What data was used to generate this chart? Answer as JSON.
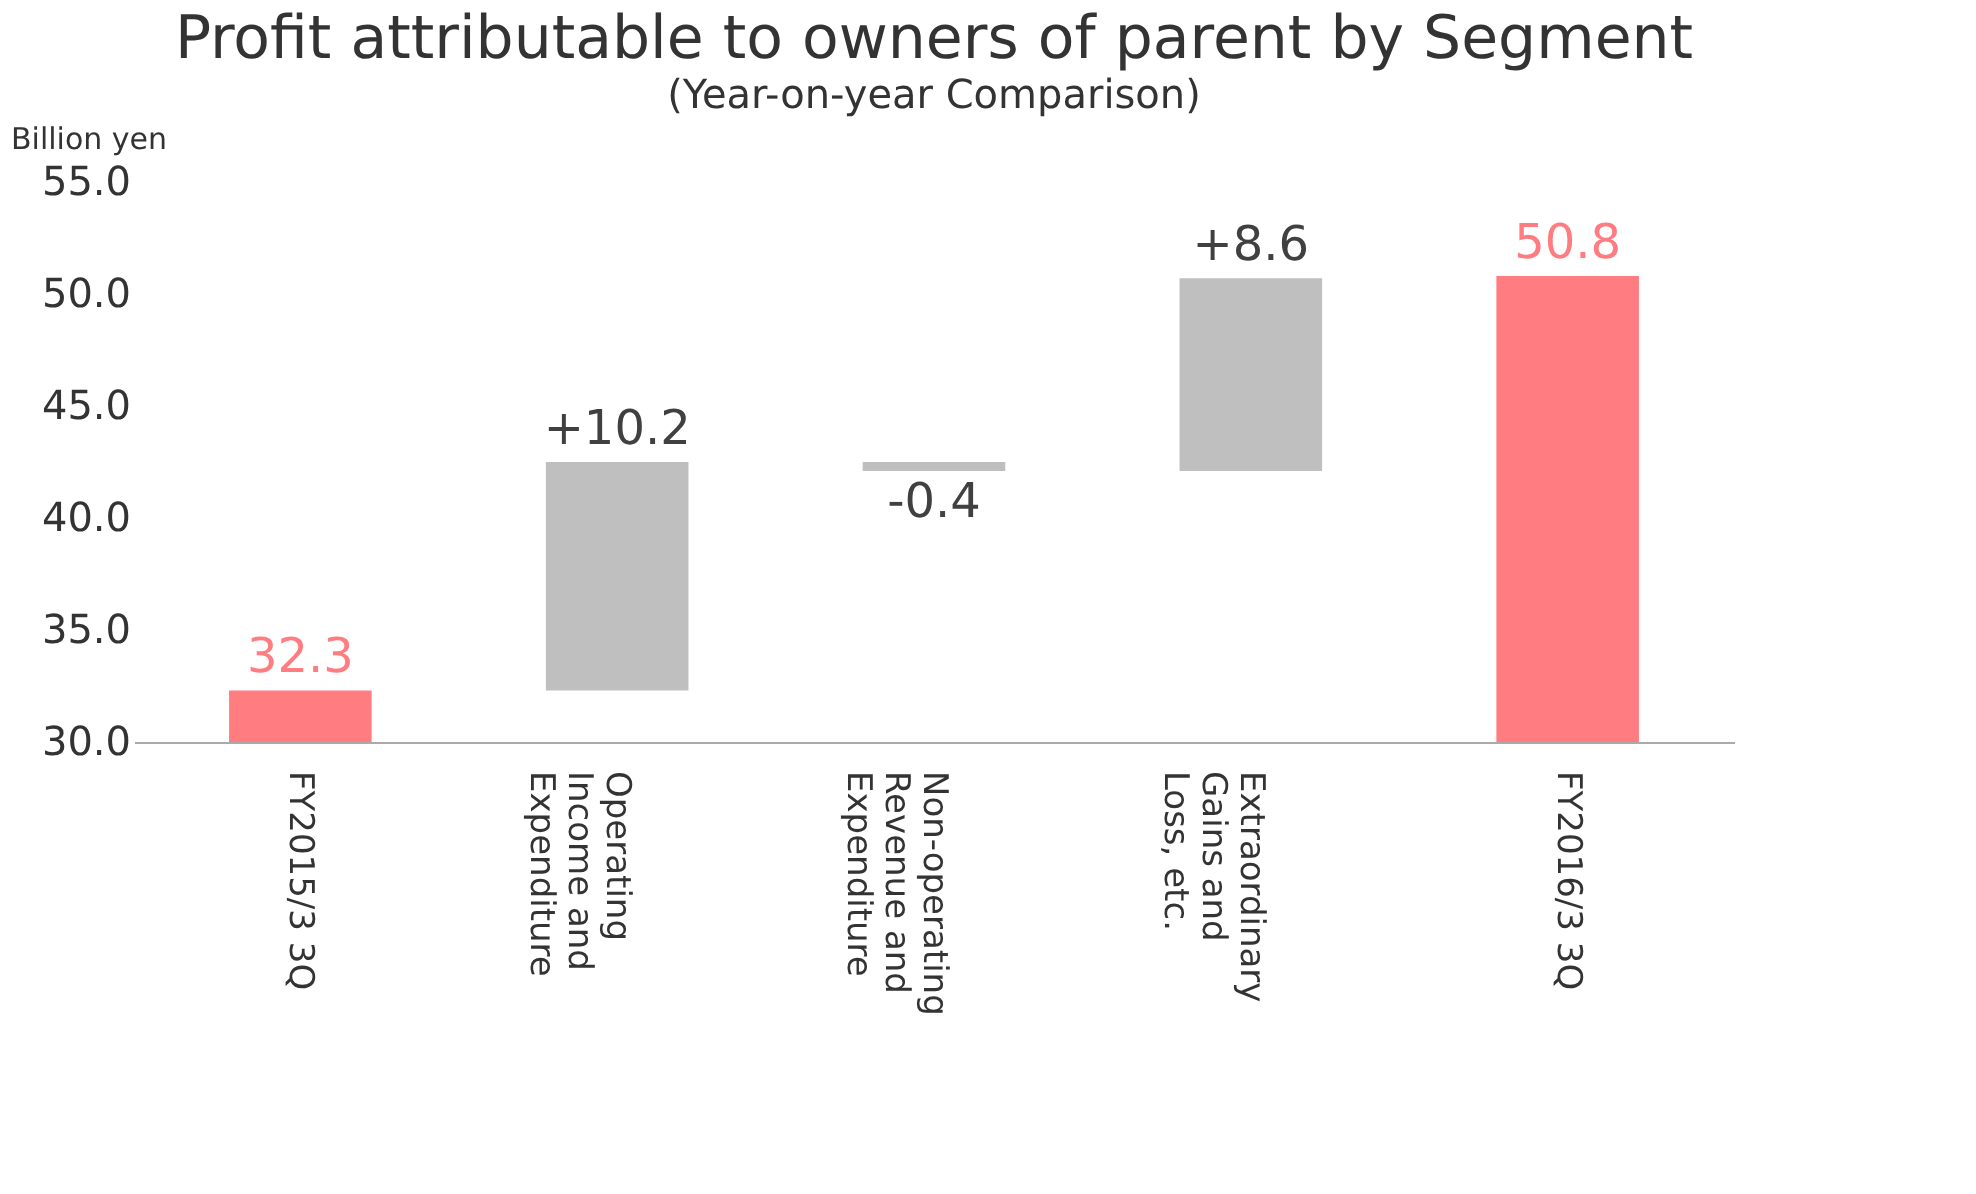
{
  "chart_data": {
    "type": "bar",
    "title": "Profit attributable to owners of parent by Segment",
    "subtitle": "(Year-on-year Comparison)",
    "ylabel": "Billion yen",
    "categories": [
      "FY2015/3 3Q",
      "Operating Income and Expenditure",
      "Non-operating Revenue and Expenditure",
      "Extraordinary Gains and Loss, etc.",
      "FY2016/3 3Q"
    ],
    "values": [
      32.3,
      10.2,
      -0.4,
      8.6,
      50.8
    ],
    "base": [
      null,
      32.3,
      42.5,
      42.1,
      null
    ],
    "colors": [
      "#ff7c80",
      "#bfbfbf",
      "#bfbfbf",
      "#bfbfbf",
      "#ff7c80"
    ],
    "value_labels": [
      "32.3",
      "+10.2",
      "-0.4",
      "+8.6",
      "50.8"
    ],
    "ylim": [
      30,
      55
    ],
    "yticks": [
      {
        "value": 30,
        "label": "30.0"
      },
      {
        "value": 35,
        "label": "35.0"
      },
      {
        "value": 40,
        "label": "40.0"
      },
      {
        "value": 45,
        "label": "45.0"
      },
      {
        "value": 50,
        "label": "50.0"
      },
      {
        "value": 55,
        "label": "55.0"
      }
    ],
    "grid": false
  }
}
